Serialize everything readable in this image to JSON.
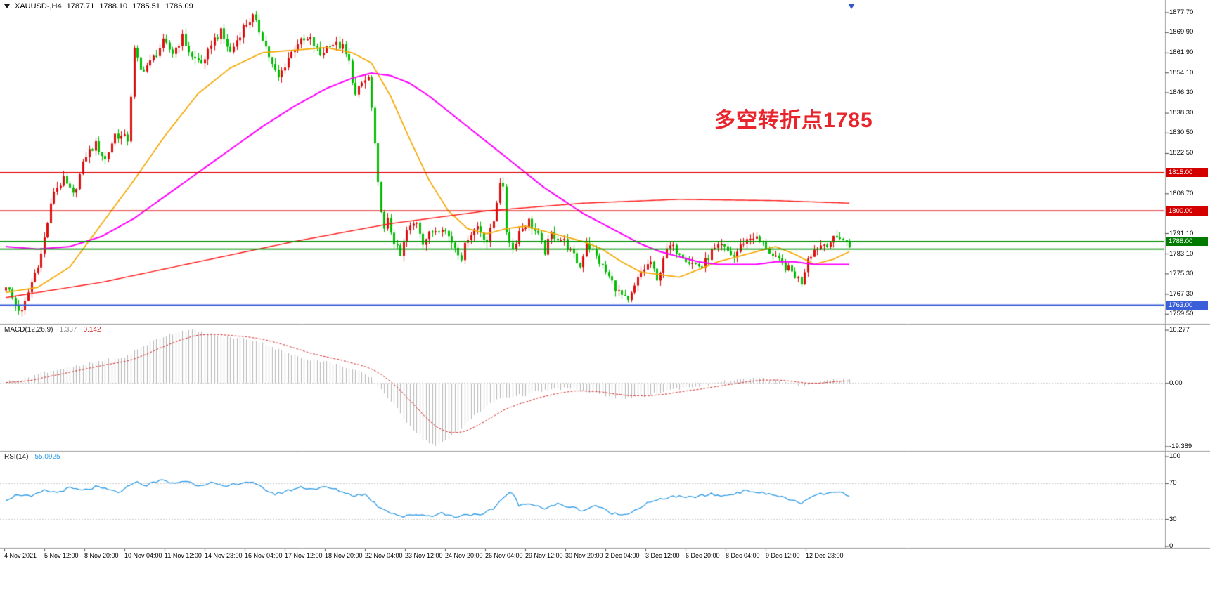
{
  "header": {
    "symbol_period": "XAUUSD-,H4",
    "open": "1787.71",
    "high": "1788.10",
    "low": "1785.51",
    "close": "1786.09"
  },
  "annotation": {
    "text": "多空转折点1785",
    "color": "#e8242c"
  },
  "colors": {
    "candle_up": "#dd0d0d",
    "candle_down": "#00bd00",
    "ma_fast": "#f5a800",
    "ma_mid": "#ff00ff",
    "ma_slow": "#ff1a1a",
    "macd_hist": "#b6b6b6",
    "macd_signal": "#d42424",
    "rsi_line": "#2e9be6",
    "panel_border": "#9c9c9c"
  },
  "price_axis": {
    "ticks": [
      {
        "label": "1877.70",
        "value": 1877.7
      },
      {
        "label": "1869.90",
        "value": 1869.9
      },
      {
        "label": "1861.90",
        "value": 1861.9
      },
      {
        "label": "1854.10",
        "value": 1854.1
      },
      {
        "label": "1846.30",
        "value": 1846.3
      },
      {
        "label": "1838.30",
        "value": 1838.3
      },
      {
        "label": "1830.50",
        "value": 1830.5
      },
      {
        "label": "1822.50",
        "value": 1822.5
      },
      {
        "label": "1806.70",
        "value": 1806.7
      },
      {
        "label": "1791.10",
        "value": 1791.1
      },
      {
        "label": "1783.10",
        "value": 1783.1
      },
      {
        "label": "1775.30",
        "value": 1775.3
      },
      {
        "label": "1767.30",
        "value": 1767.3
      },
      {
        "label": "1759.50",
        "value": 1759.5
      }
    ],
    "badges": [
      {
        "label": "1815.00",
        "value": 1815,
        "color": "#d40000"
      },
      {
        "label": "1800.00",
        "value": 1800,
        "color": "#d40000"
      },
      {
        "label": "1788.00",
        "value": 1788,
        "color": "#007a00"
      },
      {
        "label": "1763.00",
        "value": 1763,
        "color": "#3a5fd9"
      }
    ]
  },
  "hlines": [
    {
      "price": 1815,
      "color": "#e00000",
      "width": 1.6
    },
    {
      "price": 1800,
      "color": "#e00000",
      "width": 1.6
    },
    {
      "price": 1788,
      "color": "#009000",
      "width": 1.8
    },
    {
      "price": 1785,
      "color": "#009000",
      "width": 1.8
    },
    {
      "price": 1763,
      "color": "#3a5fd9",
      "width": 2.2
    }
  ],
  "time_axis": {
    "labels": [
      "4 Nov 2021",
      "5 Nov 12:00",
      "8 Nov 20:00",
      "10 Nov 04:00",
      "11 Nov 12:00",
      "14 Nov 23:00",
      "16 Nov 04:00",
      "17 Nov 12:00",
      "18 Nov 20:00",
      "22 Nov 04:00",
      "23 Nov 12:00",
      "24 Nov 20:00",
      "26 Nov 04:00",
      "29 Nov 12:00",
      "30 Nov 20:00",
      "2 Dec 04:00",
      "3 Dec 12:00",
      "6 Dec 20:00",
      "8 Dec 04:00",
      "9 Dec 12:00",
      "12 Dec 23:00"
    ]
  },
  "chart_data": {
    "type": "candlestick",
    "symbol": "XAUUSD-",
    "timeframe": "H4",
    "title": "XAUUSD- H4 candlestick chart with MACD and RSI",
    "current_bar": {
      "open": 1787.71,
      "high": 1788.1,
      "low": 1785.51,
      "close": 1786.09
    },
    "bars": 264,
    "ylim": [
      1756,
      1881
    ],
    "price_anchors": [
      [
        0,
        1771
      ],
      [
        3,
        1763
      ],
      [
        5,
        1760
      ],
      [
        8,
        1772
      ],
      [
        11,
        1783
      ],
      [
        15,
        1808
      ],
      [
        18,
        1812
      ],
      [
        21,
        1806
      ],
      [
        25,
        1822
      ],
      [
        28,
        1826
      ],
      [
        31,
        1820
      ],
      [
        34,
        1830
      ],
      [
        38,
        1828
      ],
      [
        40,
        1863
      ],
      [
        42,
        1855
      ],
      [
        45,
        1858
      ],
      [
        49,
        1866
      ],
      [
        52,
        1862
      ],
      [
        55,
        1868
      ],
      [
        58,
        1860
      ],
      [
        62,
        1858
      ],
      [
        64,
        1866
      ],
      [
        67,
        1870
      ],
      [
        70,
        1862
      ],
      [
        74,
        1872
      ],
      [
        77,
        1876
      ],
      [
        80,
        1868
      ],
      [
        83,
        1857
      ],
      [
        85,
        1852
      ],
      [
        88,
        1860
      ],
      [
        91,
        1866
      ],
      [
        95,
        1867
      ],
      [
        98,
        1861
      ],
      [
        101,
        1866
      ],
      [
        105,
        1864
      ],
      [
        107,
        1858
      ],
      [
        109,
        1845
      ],
      [
        111,
        1850
      ],
      [
        113,
        1852
      ],
      [
        114,
        1840
      ],
      [
        116,
        1810
      ],
      [
        118,
        1792
      ],
      [
        119,
        1796
      ],
      [
        121,
        1788
      ],
      [
        123,
        1782
      ],
      [
        125,
        1792
      ],
      [
        128,
        1796
      ],
      [
        130,
        1788
      ],
      [
        133,
        1792
      ],
      [
        136,
        1794
      ],
      [
        139,
        1788
      ],
      [
        142,
        1782
      ],
      [
        144,
        1790
      ],
      [
        147,
        1794
      ],
      [
        150,
        1788
      ],
      [
        152,
        1796
      ],
      [
        154,
        1812
      ],
      [
        155,
        1808
      ],
      [
        156,
        1792
      ],
      [
        158,
        1785
      ],
      [
        160,
        1792
      ],
      [
        163,
        1796
      ],
      [
        166,
        1790
      ],
      [
        168,
        1784
      ],
      [
        170,
        1791
      ],
      [
        174,
        1788
      ],
      [
        177,
        1782
      ],
      [
        179,
        1778
      ],
      [
        181,
        1788
      ],
      [
        183,
        1784
      ],
      [
        186,
        1778
      ],
      [
        189,
        1772
      ],
      [
        191,
        1768
      ],
      [
        194,
        1764
      ],
      [
        196,
        1770
      ],
      [
        198,
        1776
      ],
      [
        201,
        1780
      ],
      [
        203,
        1772
      ],
      [
        205,
        1782
      ],
      [
        207,
        1786
      ],
      [
        210,
        1784
      ],
      [
        213,
        1780
      ],
      [
        217,
        1778
      ],
      [
        220,
        1784
      ],
      [
        223,
        1786
      ],
      [
        227,
        1782
      ],
      [
        230,
        1788
      ],
      [
        233,
        1790
      ],
      [
        237,
        1786
      ],
      [
        239,
        1782
      ],
      [
        241,
        1780
      ],
      [
        245,
        1776
      ],
      [
        248,
        1772
      ],
      [
        250,
        1782
      ],
      [
        253,
        1786
      ],
      [
        257,
        1788
      ],
      [
        260,
        1790
      ],
      [
        263,
        1786
      ]
    ],
    "ma": [
      {
        "name": "ma-fast-orange",
        "color": "#f5a800",
        "width": 1.7,
        "anchors": [
          [
            0,
            1768
          ],
          [
            10,
            1770
          ],
          [
            20,
            1778
          ],
          [
            30,
            1795
          ],
          [
            40,
            1812
          ],
          [
            50,
            1830
          ],
          [
            60,
            1846
          ],
          [
            70,
            1856
          ],
          [
            80,
            1862
          ],
          [
            90,
            1863
          ],
          [
            100,
            1864
          ],
          [
            108,
            1862
          ],
          [
            114,
            1858
          ],
          [
            120,
            1845
          ],
          [
            126,
            1828
          ],
          [
            132,
            1812
          ],
          [
            138,
            1800
          ],
          [
            144,
            1793
          ],
          [
            150,
            1791
          ],
          [
            156,
            1793
          ],
          [
            162,
            1794
          ],
          [
            168,
            1792
          ],
          [
            174,
            1790
          ],
          [
            180,
            1788
          ],
          [
            186,
            1785
          ],
          [
            192,
            1780
          ],
          [
            198,
            1776
          ],
          [
            204,
            1775
          ],
          [
            210,
            1774
          ],
          [
            216,
            1777
          ],
          [
            222,
            1780
          ],
          [
            228,
            1782
          ],
          [
            234,
            1784
          ],
          [
            240,
            1786
          ],
          [
            246,
            1783
          ],
          [
            252,
            1779
          ],
          [
            258,
            1781
          ],
          [
            263,
            1784
          ]
        ]
      },
      {
        "name": "ma-mid-magenta",
        "color": "#ff00ff",
        "width": 2,
        "anchors": [
          [
            0,
            1786
          ],
          [
            10,
            1785
          ],
          [
            20,
            1786
          ],
          [
            30,
            1790
          ],
          [
            40,
            1797
          ],
          [
            50,
            1806
          ],
          [
            60,
            1815
          ],
          [
            70,
            1824
          ],
          [
            80,
            1833
          ],
          [
            90,
            1841
          ],
          [
            100,
            1848
          ],
          [
            108,
            1852
          ],
          [
            114,
            1854
          ],
          [
            120,
            1853
          ],
          [
            126,
            1850
          ],
          [
            132,
            1845
          ],
          [
            138,
            1839
          ],
          [
            144,
            1833
          ],
          [
            150,
            1827
          ],
          [
            156,
            1821
          ],
          [
            162,
            1815
          ],
          [
            168,
            1809
          ],
          [
            174,
            1804
          ],
          [
            180,
            1799
          ],
          [
            186,
            1795
          ],
          [
            192,
            1791
          ],
          [
            198,
            1787
          ],
          [
            204,
            1784
          ],
          [
            210,
            1782
          ],
          [
            216,
            1780
          ],
          [
            222,
            1779
          ],
          [
            228,
            1779
          ],
          [
            234,
            1779
          ],
          [
            240,
            1780
          ],
          [
            246,
            1780
          ],
          [
            252,
            1779
          ],
          [
            258,
            1779
          ],
          [
            263,
            1779
          ]
        ]
      },
      {
        "name": "ma-slow-red",
        "color": "#ff1a1a",
        "width": 1.4,
        "anchors": [
          [
            0,
            1766
          ],
          [
            30,
            1772
          ],
          [
            60,
            1780
          ],
          [
            90,
            1788
          ],
          [
            120,
            1795
          ],
          [
            150,
            1800
          ],
          [
            180,
            1803
          ],
          [
            210,
            1804.5
          ],
          [
            240,
            1804
          ],
          [
            263,
            1803
          ]
        ]
      }
    ],
    "macd": {
      "label": "MACD(12,26,9)",
      "main_value": "1.337",
      "signal_value": "0.142",
      "scale_labels": [
        {
          "label": "16.277",
          "value": 16.277
        },
        {
          "label": "0.00",
          "value": 0
        },
        {
          "label": "-19.389",
          "value": -19.389
        }
      ],
      "hist_anchors": [
        [
          0,
          0.5
        ],
        [
          6,
          1.5
        ],
        [
          12,
          3.5
        ],
        [
          18,
          4.5
        ],
        [
          24,
          5.5
        ],
        [
          30,
          7
        ],
        [
          36,
          7.5
        ],
        [
          42,
          11
        ],
        [
          48,
          14
        ],
        [
          54,
          16
        ],
        [
          58,
          16.2
        ],
        [
          64,
          15
        ],
        [
          70,
          14
        ],
        [
          76,
          13.5
        ],
        [
          82,
          11.5
        ],
        [
          88,
          9
        ],
        [
          94,
          7.5
        ],
        [
          100,
          6.5
        ],
        [
          106,
          5
        ],
        [
          110,
          3.5
        ],
        [
          114,
          1.5
        ],
        [
          118,
          -3
        ],
        [
          122,
          -8
        ],
        [
          126,
          -13
        ],
        [
          130,
          -17
        ],
        [
          134,
          -19.2
        ],
        [
          138,
          -17
        ],
        [
          142,
          -13.5
        ],
        [
          146,
          -10
        ],
        [
          150,
          -7
        ],
        [
          154,
          -4.5
        ],
        [
          158,
          -4
        ],
        [
          162,
          -3.5
        ],
        [
          166,
          -2.5
        ],
        [
          170,
          -2
        ],
        [
          174,
          -1.5
        ],
        [
          178,
          -2
        ],
        [
          182,
          -2.8
        ],
        [
          186,
          -3.5
        ],
        [
          190,
          -4.2
        ],
        [
          194,
          -4.5
        ],
        [
          198,
          -4
        ],
        [
          202,
          -3.2
        ],
        [
          206,
          -2.2
        ],
        [
          210,
          -1.5
        ],
        [
          214,
          -1
        ],
        [
          218,
          -0.5
        ],
        [
          222,
          0.3
        ],
        [
          226,
          0.8
        ],
        [
          230,
          1.2
        ],
        [
          234,
          1.5
        ],
        [
          238,
          1.2
        ],
        [
          242,
          0.5
        ],
        [
          246,
          -0.3
        ],
        [
          250,
          -0.5
        ],
        [
          254,
          0.4
        ],
        [
          258,
          1
        ],
        [
          263,
          1.337
        ]
      ]
    },
    "rsi": {
      "label": "RSI(14)",
      "value": "55.0925",
      "levels": [
        70,
        30
      ],
      "scale_labels": [
        {
          "label": "100",
          "value": 100
        },
        {
          "label": "70",
          "value": 70
        },
        {
          "label": "30",
          "value": 30
        },
        {
          "label": "0",
          "value": 0
        }
      ],
      "anchors": [
        [
          0,
          52
        ],
        [
          4,
          58
        ],
        [
          8,
          55
        ],
        [
          12,
          62
        ],
        [
          16,
          60
        ],
        [
          20,
          65
        ],
        [
          24,
          62
        ],
        [
          28,
          66
        ],
        [
          32,
          63
        ],
        [
          36,
          60
        ],
        [
          40,
          72
        ],
        [
          44,
          68
        ],
        [
          48,
          74
        ],
        [
          52,
          70
        ],
        [
          56,
          73
        ],
        [
          60,
          68
        ],
        [
          64,
          71
        ],
        [
          68,
          66
        ],
        [
          72,
          70
        ],
        [
          76,
          72
        ],
        [
          80,
          65
        ],
        [
          84,
          58
        ],
        [
          88,
          62
        ],
        [
          92,
          66
        ],
        [
          96,
          64
        ],
        [
          100,
          66
        ],
        [
          104,
          62
        ],
        [
          108,
          57
        ],
        [
          112,
          58
        ],
        [
          116,
          45
        ],
        [
          120,
          38
        ],
        [
          124,
          33
        ],
        [
          128,
          36
        ],
        [
          132,
          34
        ],
        [
          136,
          37
        ],
        [
          140,
          33
        ],
        [
          144,
          36
        ],
        [
          148,
          34
        ],
        [
          152,
          42
        ],
        [
          156,
          58
        ],
        [
          158,
          60
        ],
        [
          160,
          45
        ],
        [
          164,
          48
        ],
        [
          168,
          42
        ],
        [
          172,
          47
        ],
        [
          176,
          44
        ],
        [
          180,
          40
        ],
        [
          184,
          46
        ],
        [
          188,
          38
        ],
        [
          192,
          35
        ],
        [
          196,
          40
        ],
        [
          200,
          48
        ],
        [
          204,
          52
        ],
        [
          208,
          56
        ],
        [
          212,
          54
        ],
        [
          216,
          56
        ],
        [
          220,
          58
        ],
        [
          224,
          56
        ],
        [
          228,
          60
        ],
        [
          232,
          62
        ],
        [
          236,
          59
        ],
        [
          240,
          57
        ],
        [
          244,
          53
        ],
        [
          248,
          47
        ],
        [
          252,
          57
        ],
        [
          256,
          59
        ],
        [
          260,
          60
        ],
        [
          263,
          55.1
        ]
      ]
    }
  }
}
